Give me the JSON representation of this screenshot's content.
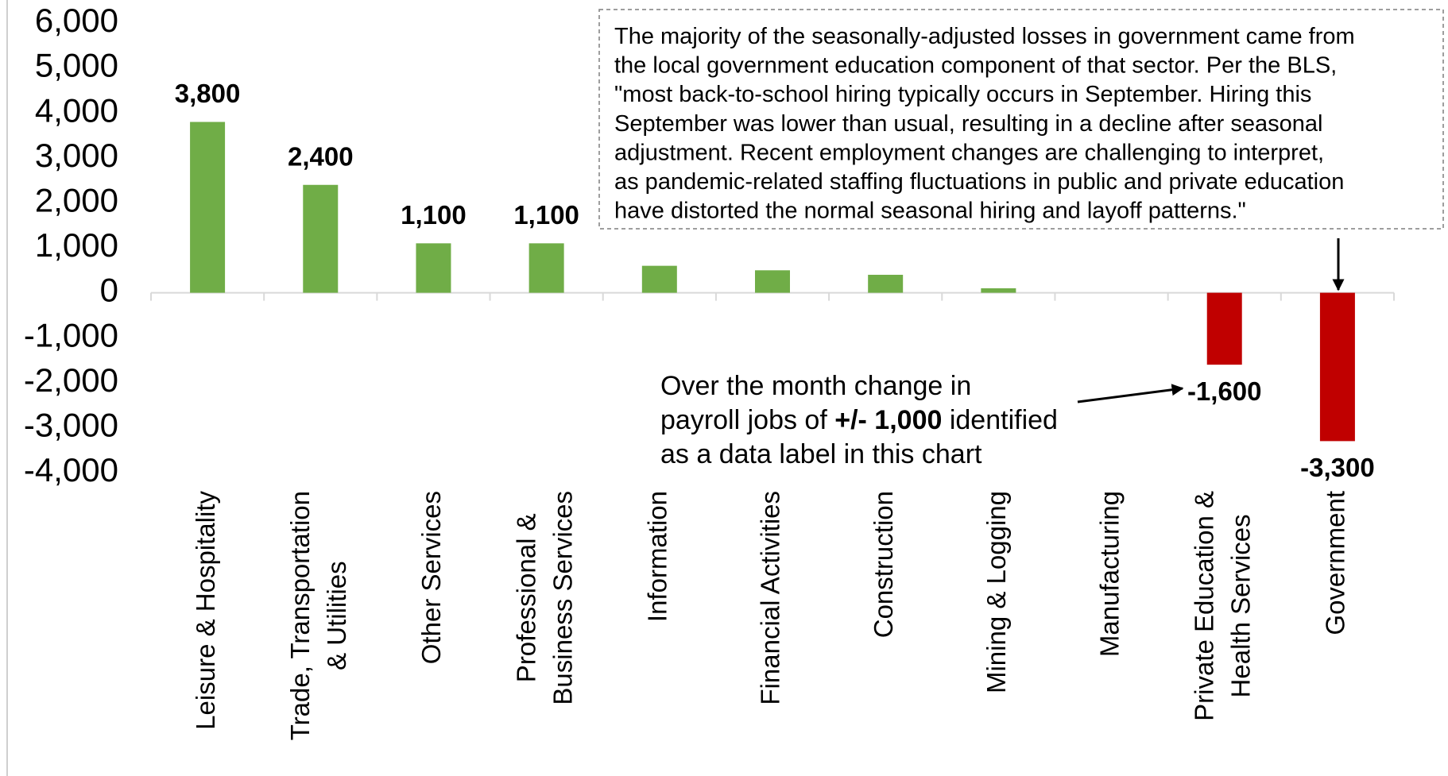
{
  "chart_data": {
    "type": "bar",
    "categories": [
      [
        "Leisure & Hospitality"
      ],
      [
        "Trade, Transportation",
        "& Utilities"
      ],
      [
        "Other Services"
      ],
      [
        "Professional &",
        "Business Services"
      ],
      [
        "Information"
      ],
      [
        "Financial Activities"
      ],
      [
        "Construction"
      ],
      [
        "Mining & Logging"
      ],
      [
        "Manufacturing"
      ],
      [
        "Private Education &",
        "Health Services"
      ],
      [
        "Government"
      ]
    ],
    "values": [
      3800,
      2400,
      1100,
      1100,
      600,
      500,
      400,
      100,
      0,
      -1600,
      -3300
    ],
    "value_labels": [
      "3,800",
      "2,400",
      "1,100",
      "1,100",
      null,
      null,
      null,
      null,
      null,
      "-1,600",
      "-3,300"
    ],
    "positive_color": "#70ad47",
    "negative_color": "#c00000",
    "ylim": [
      -4000,
      6000
    ],
    "yticks": [
      {
        "value": 6000,
        "label": "6,000"
      },
      {
        "value": 5000,
        "label": "5,000"
      },
      {
        "value": 4000,
        "label": "4,000"
      },
      {
        "value": 3000,
        "label": "3,000"
      },
      {
        "value": 2000,
        "label": "2,000"
      },
      {
        "value": 1000,
        "label": "1,000"
      },
      0,
      {
        "value": -1000,
        "label": "-1,000"
      },
      {
        "value": -2000,
        "label": "-2,000"
      },
      {
        "value": -3000,
        "label": "-3,000"
      },
      {
        "value": -4000,
        "label": "-4,000"
      }
    ],
    "grid": false,
    "annotations": [
      {
        "lines": [
          "The majority of the seasonally-adjusted losses in government came from",
          "the local government education component of that sector. Per the BLS,",
          "\"most back-to-school hiring typically occurs in September. Hiring this",
          "September was lower than usual, resulting in a decline after seasonal",
          "adjustment. Recent employment changes are challenging to interpret,",
          "as pandemic-related staffing fluctuations in public and private education",
          "have distorted the normal seasonal hiring and layoff patterns.\""
        ]
      },
      {
        "lines": [
          [
            "Over the month change in"
          ],
          [
            "payroll jobs of ",
            "+/- 1,000",
            " identified"
          ],
          [
            "as a data label in this chart"
          ]
        ]
      }
    ]
  }
}
